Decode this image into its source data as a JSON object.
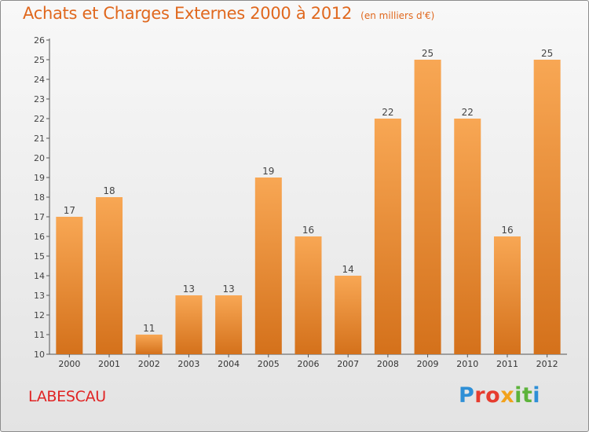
{
  "header": {
    "title": "Achats et Charges Externes 2000 à 2012",
    "unit": "(en milliers d'€)"
  },
  "footer": {
    "commune": "LABESCAU",
    "brand_letters": [
      "P",
      "r",
      "o",
      "x",
      "i",
      "t",
      "i"
    ],
    "brand_colors": [
      "#2e8fd6",
      "#e63c2f",
      "#e63c2f",
      "#f2a21c",
      "#5db33b",
      "#5db33b",
      "#2e8fd6"
    ]
  },
  "colors": {
    "bar_light": "#f8a754",
    "bar_dark": "#d4711b",
    "title": "#e0681e",
    "commune": "#e02424",
    "text": "#444444"
  },
  "chart_data": {
    "type": "bar",
    "categories": [
      "2000",
      "2001",
      "2002",
      "2003",
      "2004",
      "2005",
      "2006",
      "2007",
      "2008",
      "2009",
      "2010",
      "2011",
      "2012"
    ],
    "values": [
      17,
      18,
      11,
      13,
      13,
      19,
      16,
      14,
      22,
      25,
      22,
      16,
      25
    ],
    "yticks": [
      10,
      11,
      12,
      13,
      14,
      15,
      16,
      17,
      18,
      19,
      20,
      21,
      22,
      23,
      24,
      25,
      26
    ],
    "ylim": [
      10,
      26
    ],
    "title": "Achats et Charges Externes 2000 à 2012",
    "xlabel": "",
    "ylabel": "",
    "grid": false,
    "legend": "none"
  }
}
